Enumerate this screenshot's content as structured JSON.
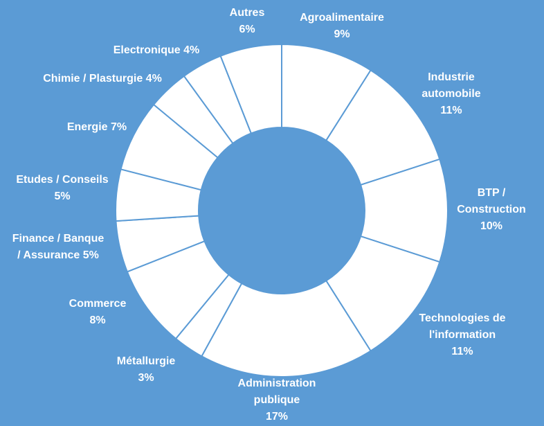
{
  "chart_data": {
    "type": "pie",
    "variant": "donut",
    "background_color": "#5b9bd5",
    "slice_color": "#ffffff",
    "separator_color": "#5b9bd5",
    "slices": [
      {
        "name": "Agroalimentaire",
        "value": 9,
        "value_label": "9%",
        "label_lines": [
          "Agroalimentaire",
          "9%"
        ]
      },
      {
        "name": "Industrie automobile",
        "value": 11,
        "value_label": "11%",
        "label_lines": [
          "Industrie",
          "automobile",
          "11%"
        ]
      },
      {
        "name": "BTP / Construction",
        "value": 10,
        "value_label": "10%",
        "label_lines": [
          "BTP /",
          "Construction",
          "10%"
        ]
      },
      {
        "name": "Technologies de l'information",
        "value": 11,
        "value_label": "11%",
        "label_lines": [
          "Technologies de",
          "l'information",
          "11%"
        ]
      },
      {
        "name": "Administration publique",
        "value": 17,
        "value_label": "17%",
        "label_lines": [
          "Administration",
          "publique",
          "17%"
        ]
      },
      {
        "name": "Métallurgie",
        "value": 3,
        "value_label": "3%",
        "label_lines": [
          "Métallurgie",
          "3%"
        ]
      },
      {
        "name": "Commerce",
        "value": 8,
        "value_label": "8%",
        "label_lines": [
          "Commerce",
          "8%"
        ]
      },
      {
        "name": "Finance / Banque / Assurance",
        "value": 5,
        "value_label": "5%",
        "label_lines": [
          "Finance / Banque",
          "/ Assurance 5%"
        ]
      },
      {
        "name": "Etudes / Conseils",
        "value": 5,
        "value_label": "5%",
        "label_lines": [
          "Etudes / Conseils",
          "5%"
        ]
      },
      {
        "name": "Energie",
        "value": 7,
        "value_label": "7%",
        "label_lines": [
          "Energie 7%"
        ]
      },
      {
        "name": "Chimie / Plasturgie",
        "value": 4,
        "value_label": "4%",
        "label_lines": [
          "Chimie / Plasturgie 4%"
        ]
      },
      {
        "name": "Electronique",
        "value": 4,
        "value_label": "4%",
        "label_lines": [
          "Electronique 4%"
        ]
      },
      {
        "name": "Autres",
        "value": 6,
        "value_label": "6%",
        "label_lines": [
          "Autres",
          "6%"
        ]
      }
    ]
  }
}
